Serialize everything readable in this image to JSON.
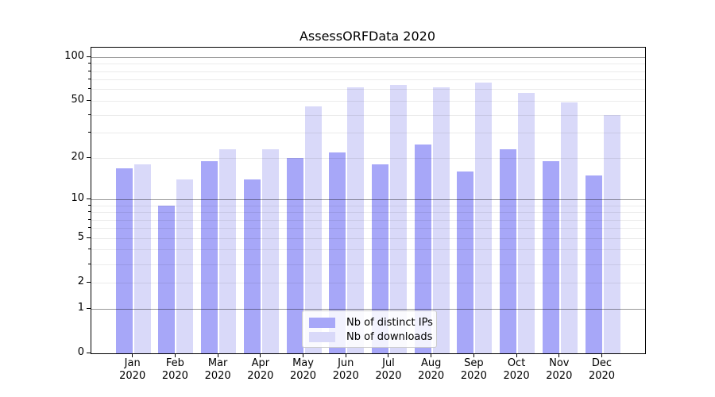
{
  "title": "AssessORFData 2020",
  "chart_data": {
    "type": "bar",
    "title": "AssessORFData 2020",
    "categories": [
      "Jan 2020",
      "Feb 2020",
      "Mar 2020",
      "Apr 2020",
      "May 2020",
      "Jun 2020",
      "Jul 2020",
      "Aug 2020",
      "Sep 2020",
      "Oct 2020",
      "Nov 2020",
      "Dec 2020"
    ],
    "month_line1": [
      "Jan",
      "Feb",
      "Mar",
      "Apr",
      "May",
      "Jun",
      "Jul",
      "Aug",
      "Sep",
      "Oct",
      "Nov",
      "Dec"
    ],
    "month_line2": [
      "2020",
      "2020",
      "2020",
      "2020",
      "2020",
      "2020",
      "2020",
      "2020",
      "2020",
      "2020",
      "2020",
      "2020"
    ],
    "series": [
      {
        "name": "Nb of distinct IPs",
        "color": "#a7a7f8",
        "values": [
          17,
          9,
          19,
          14,
          20,
          22,
          18,
          25,
          16,
          23,
          19,
          15
        ]
      },
      {
        "name": "Nb of downloads",
        "color": "#d9d9f9",
        "values": [
          18,
          14,
          23,
          23,
          46,
          62,
          65,
          62,
          67,
          57,
          49,
          40
        ]
      }
    ],
    "xlabel": "",
    "ylabel": "",
    "y_axis": {
      "scale": "log1p",
      "tick_labels": [
        0,
        1,
        2,
        5,
        10,
        20,
        50,
        100
      ],
      "major_gridlines": [
        1,
        10,
        100
      ],
      "minor_gridlines": [
        2,
        3,
        4,
        5,
        6,
        7,
        8,
        9,
        20,
        30,
        40,
        50,
        60,
        70,
        80,
        90
      ],
      "ylim": [
        0,
        116
      ],
      "grid": true
    },
    "legend": {
      "position": "lower center",
      "entries": [
        "Nb of distinct IPs",
        "Nb of downloads"
      ]
    }
  },
  "colors": {
    "distinct_ips": "#a7a7f8",
    "downloads": "#d9d9f9",
    "axis": "#000000",
    "legend_border": "#cccccc"
  }
}
